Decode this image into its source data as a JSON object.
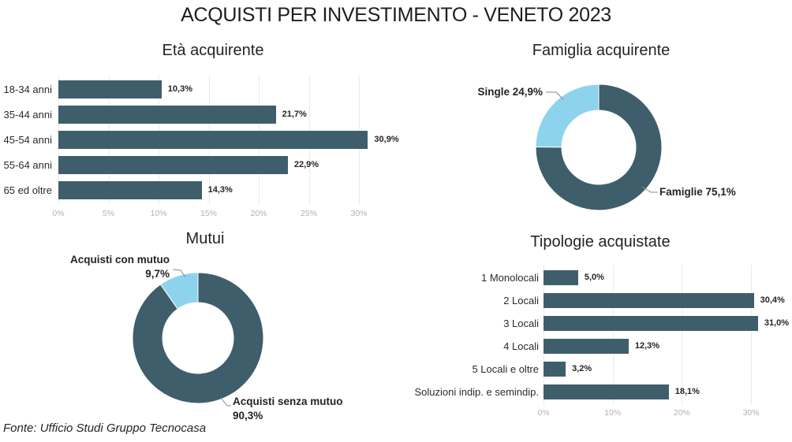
{
  "title": "ACQUISTI PER INVESTIMENTO - VENETO 2023",
  "source": "Fonte: Ufficio Studi Gruppo Tecnocasa",
  "colors": {
    "primary_dark_teal": "#3F5E6C",
    "accent_light_blue": "#8ED3ED",
    "axis_text": "#B5B1AE",
    "gridline": "#EBEBEB",
    "text": "#252423",
    "callout_line": "#8A8A8A"
  },
  "chart_data": [
    {
      "id": "eta",
      "type": "bar",
      "orientation": "horizontal",
      "title": "Età acquirente",
      "categories": [
        "18-34 anni",
        "35-44 anni",
        "45-54 anni",
        "55-64 anni",
        "65 ed oltre"
      ],
      "values": [
        10.3,
        21.7,
        30.9,
        22.9,
        14.3
      ],
      "value_labels": [
        "10,3%",
        "21,7%",
        "30,9%",
        "22,9%",
        "14,3%"
      ],
      "x_ticks": [
        "0%",
        "5%",
        "10%",
        "15%",
        "20%",
        "25%",
        "30%"
      ],
      "x_tick_values": [
        0,
        5,
        10,
        15,
        20,
        25,
        30
      ],
      "xlim": [
        0,
        31
      ],
      "xlabel": "",
      "ylabel": "",
      "grid": true,
      "legend": false,
      "bar_color": "#3F5E6C"
    },
    {
      "id": "famiglia",
      "type": "donut",
      "title": "Famiglia acquirente",
      "slices": [
        {
          "label": "Famiglie",
          "value": 75.1,
          "display": "Famiglie 75,1%",
          "color": "#3F5E6C"
        },
        {
          "label": "Single",
          "value": 24.9,
          "display": "Single 24,9%",
          "color": "#8ED3ED"
        }
      ],
      "legend": false
    },
    {
      "id": "mutui",
      "type": "donut",
      "title": "Mutui",
      "slices": [
        {
          "label": "Acquisti senza mutuo",
          "value": 90.3,
          "display": "Acquisti senza mutuo\n90,3%",
          "color": "#3F5E6C"
        },
        {
          "label": "Acquisti con mutuo",
          "value": 9.7,
          "display": "Acquisti con mutuo\n9,7%",
          "color": "#8ED3ED"
        }
      ],
      "legend": false
    },
    {
      "id": "tipologie",
      "type": "bar",
      "orientation": "horizontal",
      "title": "Tipologie acquistate",
      "categories": [
        "1 Monolocali",
        "2 Locali",
        "3 Locali",
        "4 Locali",
        "5 Locali e oltre",
        "Soluzioni indip. e semindip."
      ],
      "values": [
        5.0,
        30.4,
        31.0,
        12.3,
        3.2,
        18.1
      ],
      "value_labels": [
        "5,0%",
        "30,4%",
        "31,0%",
        "12,3%",
        "3,2%",
        "18,1%"
      ],
      "x_ticks": [
        "0%",
        "10%",
        "20%",
        "30%"
      ],
      "x_tick_values": [
        0,
        10,
        20,
        30
      ],
      "xlim": [
        0,
        32
      ],
      "xlabel": "",
      "ylabel": "",
      "grid": true,
      "legend": false,
      "bar_color": "#3F5E6C"
    }
  ]
}
